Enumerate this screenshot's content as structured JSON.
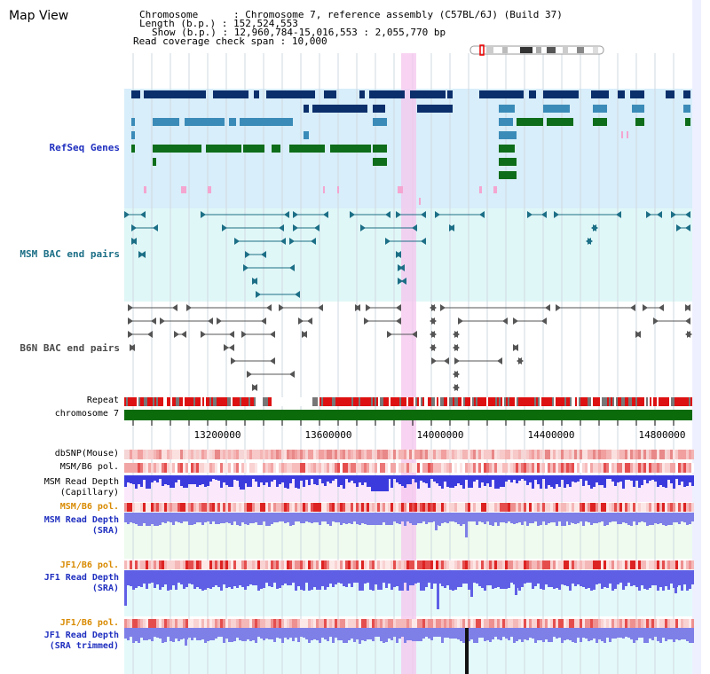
{
  "window": {
    "title": "Map View"
  },
  "info": {
    "chromosome_key": "Chromosome",
    "chromosome_value": "Chromosome 7, reference assembly (C57BL/6J) (Build 37)",
    "length_key": "Length (b.p.)",
    "length_value": "152,524,553",
    "show_key": "Show (b.p.)",
    "show_value": "12,960,784-15,016,553 : 2,055,770 bp",
    "coverage_key": "Read coverage check span",
    "coverage_value": "10,000"
  },
  "tracks": {
    "refseq": {
      "label": "RefSeq Genes",
      "color": "#1f2fbf"
    },
    "msm_bac": {
      "label": "MSM BAC end pairs",
      "color": "#1c6f86"
    },
    "b6n_bac": {
      "label": "B6N BAC end pairs",
      "color": "#4a4a4a"
    },
    "repeat": {
      "label": "Repeat"
    },
    "chromosome": {
      "label": "chromosome 7"
    },
    "dbsnp": {
      "label": "dbSNP(Mouse)"
    },
    "msm_b6_pol_1": {
      "label": "MSM/B6 pol."
    },
    "msm_depth_cap": {
      "label_1": "MSM Read Depth",
      "label_2": "(Capillary)"
    },
    "msm_b6_pol_2": {
      "label": "MSM/B6 pol.",
      "color": "#d88a00"
    },
    "msm_depth_sra": {
      "label_1": "MSM Read Depth",
      "label_2": "(SRA)",
      "color": "#1f2fbf"
    },
    "jf1_b6_pol_1": {
      "label": "JF1/B6 pol.",
      "color": "#d88a00"
    },
    "jf1_depth_sra": {
      "label_1": "JF1 Read Depth",
      "label_2": "(SRA)",
      "color": "#1f2fbf"
    },
    "jf1_b6_pol_2": {
      "label": "JF1/B6 pol.",
      "color": "#d88a00"
    },
    "jf1_depth_trim": {
      "label_1": "JF1 Read Depth",
      "label_2": "(SRA trimmed)",
      "color": "#1f2fbf"
    }
  },
  "axis": {
    "ticks": [
      "13200000",
      "13600000",
      "14000000",
      "14400000",
      "14800000"
    ]
  }
}
